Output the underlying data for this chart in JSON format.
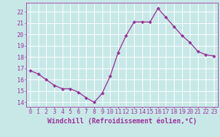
{
  "x": [
    0,
    1,
    2,
    3,
    4,
    5,
    6,
    7,
    8,
    9,
    10,
    11,
    12,
    13,
    14,
    15,
    16,
    17,
    18,
    19,
    20,
    21,
    22,
    23
  ],
  "y": [
    16.8,
    16.5,
    16.0,
    15.5,
    15.2,
    15.2,
    14.9,
    14.4,
    14.0,
    14.8,
    16.3,
    18.4,
    19.9,
    21.1,
    21.1,
    21.1,
    22.3,
    21.5,
    20.7,
    19.9,
    19.3,
    18.5,
    18.2,
    18.1
  ],
  "line_color": "#993399",
  "marker": "D",
  "marker_size": 2.2,
  "bg_color": "#c8e8e8",
  "grid_color": "#b0d8d8",
  "xlabel": "Windchill (Refroidissement éolien,°C)",
  "ylabel_ticks": [
    14,
    15,
    16,
    17,
    18,
    19,
    20,
    21,
    22
  ],
  "xlim": [
    -0.5,
    23.5
  ],
  "ylim": [
    13.6,
    22.8
  ],
  "tick_color": "#993399",
  "tick_fontsize": 6,
  "xlabel_fontsize": 7,
  "line_width": 1.0
}
